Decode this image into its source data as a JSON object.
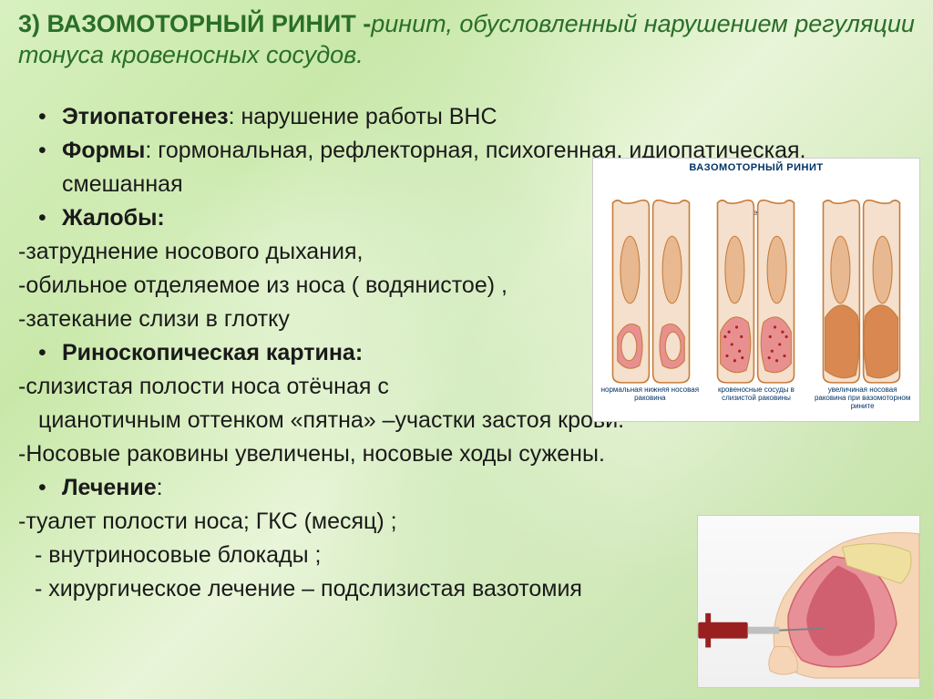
{
  "title": {
    "number": "3)",
    "strong": "ВАЗОМОТОРНЫЙ РИНИТ -",
    "italic": "ринит, обусловленный нарушением регуляции тонуса кровеносных сосудов."
  },
  "bullets": [
    {
      "type": "bullet",
      "bold": "Этиопатогенез",
      "text": ": нарушение работы ВНС"
    },
    {
      "type": "bullet",
      "bold": "Формы",
      "text": ": гормональная, рефлекторная, психогенная, идиопатическая, смешанная"
    },
    {
      "type": "bullet",
      "bold": "Жалобы:",
      "text": ""
    },
    {
      "type": "dash",
      "text": "-затруднение носового дыхания,"
    },
    {
      "type": "dash",
      "text": "-обильное отделяемое из носа ( водянистое) ,"
    },
    {
      "type": "dash",
      "text": "-затекание слизи в глотку"
    },
    {
      "type": "bullet",
      "bold": "Риноскопическая картина:",
      "text": ""
    },
    {
      "type": "dash",
      "text": "-слизистая полости носа отёчная с"
    },
    {
      "type": "plain-indent",
      "text": "цианотичным оттенком «пятна» –участки застоя крови."
    },
    {
      "type": "dash",
      "text": "-Носовые раковины увеличены, носовые ходы сужены."
    },
    {
      "type": "bullet",
      "bold": "Лечение",
      "text": ":"
    },
    {
      "type": "dash",
      "text": "-туалет полости носа; ГКС (месяц) ;"
    },
    {
      "type": "dash-indent",
      "text": "-   внутриносовые блокады ;"
    },
    {
      "type": "dash-indent",
      "text": "-   хирургическое лечение – подслизистая вазотомия"
    }
  ],
  "figure1": {
    "title": "ВАЗОМОТОРНЫЙ РИНИТ",
    "septum_label": "носовая перегородка",
    "captions": [
      "нормальная нижняя носовая раковина",
      "кровеносные сосуды в слизистой раковины",
      "увеличиная носовая раковина при вазомоторном рините"
    ],
    "colors": {
      "outline": "#c77b3a",
      "fill_light": "#f4e0cc",
      "fill_med": "#e8b890",
      "fill_dark": "#d88850",
      "mucosa": "#e89090",
      "mucosa_dark": "#d06060",
      "vessel": "#b02020"
    }
  },
  "figure2": {
    "colors": {
      "skin": "#f5d5b5",
      "skin_dark": "#e0b890",
      "mucosa": "#d06070",
      "mucosa_light": "#e89098",
      "bone": "#f0e0a0",
      "needle_body": "#9a2020",
      "needle_tip": "#c0c0c0"
    }
  },
  "style": {
    "title_color": "#2a6e2a",
    "text_color": "#1a1a1a",
    "title_fontsize": 27,
    "body_fontsize": 25
  }
}
